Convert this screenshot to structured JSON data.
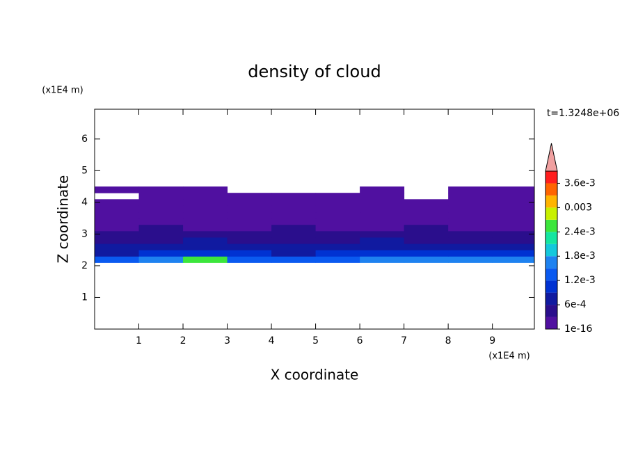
{
  "chart_data": {
    "type": "contour",
    "title": "density of cloud",
    "xlabel": "X coordinate",
    "ylabel": "Z coordinate",
    "x_unit": "(x1E4 m)",
    "y_unit": "(x1E4 m)",
    "time_label": "t=1.3248e+06",
    "xlim": [
      0,
      9.95
    ],
    "ylim": [
      0,
      6.94
    ],
    "xticks": [
      1,
      2,
      3,
      4,
      5,
      6,
      7,
      8,
      9
    ],
    "yticks": [
      1,
      2,
      3,
      4,
      5,
      6
    ],
    "x": [
      0,
      1,
      2,
      3,
      4,
      5,
      6,
      7,
      8,
      9,
      9.95
    ],
    "y": [
      2.1,
      2.3,
      2.5,
      2.7,
      2.9,
      3.1,
      3.3,
      3.5,
      3.7,
      3.9,
      4.1,
      4.3,
      4.5
    ],
    "z": [
      [
        0.0014,
        0.0016,
        0.0026,
        0.0015,
        0.0013,
        0.0014,
        0.0016,
        0.0017,
        0.0018,
        0.0016
      ],
      [
        0.0009,
        0.001,
        0.0011,
        0.001,
        0.0009,
        0.0011,
        0.0012,
        0.0011,
        0.0012,
        0.0011
      ],
      [
        0.0007,
        0.0008,
        0.0007,
        0.0008,
        0.0007,
        0.0008,
        0.0009,
        0.0008,
        0.0008,
        0.0007
      ],
      [
        0.0005,
        0.0006,
        0.0007,
        0.0006,
        0.0005,
        0.0006,
        0.0007,
        0.0006,
        0.0006,
        0.0005
      ],
      [
        0.0004,
        0.0004,
        0.0005,
        0.0004,
        0.0004,
        0.0005,
        0.0004,
        0.0004,
        0.0005,
        0.0004
      ],
      [
        0.0003,
        0.0004,
        0.0003,
        0.0003,
        0.0004,
        0.0003,
        0.0003,
        0.0004,
        0.0003,
        0.0003
      ],
      [
        0.0002,
        0.0003,
        0.0002,
        0.0002,
        0.0003,
        0.0002,
        0.0002,
        0.0003,
        0.0002,
        0.0002
      ],
      [
        0.0001,
        0.0002,
        0.0001,
        0.0001,
        0.0002,
        0.0001,
        0.0001,
        0.0001,
        0.0001,
        0.0001
      ],
      [
        0.0001,
        0.0001,
        0.0001,
        0.0001,
        0.0001,
        0.0001,
        0.0001,
        0.0001,
        0.0001,
        0.0001
      ],
      [
        0.0001,
        0.0001,
        0.0001,
        0.0001,
        0.0001,
        0.0001,
        0.0001,
        0.0001,
        0.0001,
        0.0001
      ],
      [
        null,
        0.0001,
        0.0001,
        0.0001,
        0.0001,
        0.0001,
        0.0001,
        null,
        0.0001,
        0.0001
      ],
      [
        0.0001,
        0.0001,
        0.0001,
        null,
        null,
        null,
        0.0001,
        null,
        0.0001,
        0.0001
      ]
    ],
    "colorbar": {
      "lim": [
        1e-16,
        0.0039
      ],
      "colors": [
        "#5010a0",
        "#2a0e8c",
        "#101aa0",
        "#0032d2",
        "#0a5af0",
        "#1e82f0",
        "#14c8dc",
        "#14e6a0",
        "#3ce63c",
        "#c8f000",
        "#ffb400",
        "#ff6400",
        "#ff1e1e"
      ],
      "extend_color": "#f0a0a0",
      "ticks": [
        1e-16,
        {
          "value": 0.0006,
          "label": "6e-4"
        },
        {
          "value": 0.0012,
          "label": "1.2e-3"
        },
        {
          "value": 0.0018,
          "label": "1.8e-3"
        },
        {
          "value": 0.0024,
          "label": "2.4e-3"
        },
        0.003,
        {
          "value": 0.0036,
          "label": "3.6e-3"
        }
      ]
    }
  }
}
